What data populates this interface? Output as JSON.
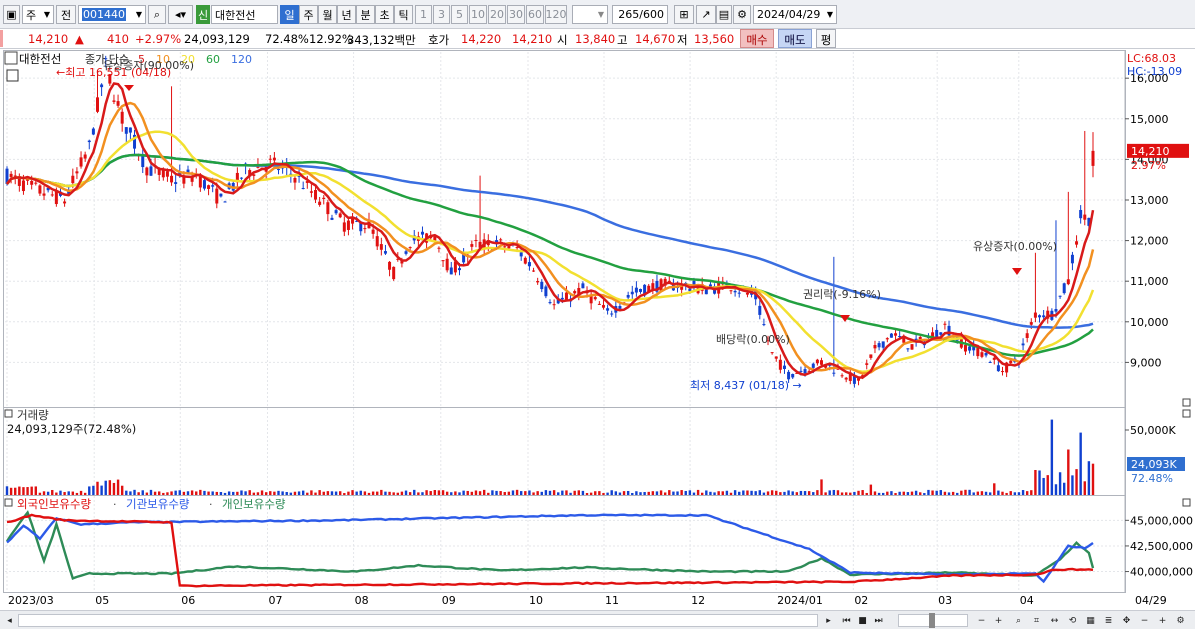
{
  "toolbar": {
    "market_label": "주",
    "prev_label": "전",
    "code_value": "001440",
    "new_badge": "신",
    "stock_name": "대한전선",
    "period_tabs": [
      "일",
      "주",
      "월",
      "년",
      "분",
      "초",
      "틱"
    ],
    "active_period": "일",
    "minute_options": [
      "1",
      "3",
      "5",
      "10",
      "20",
      "30",
      "60",
      "120"
    ],
    "count_display": "265",
    "count_max": "/600",
    "date_value": "2024/04/29"
  },
  "quote": {
    "price": "14,210",
    "change": "410",
    "pct": "+2.97%",
    "volume": "24,093,129",
    "vol_ratio": "72.48%",
    "turnover": "12.92%",
    "amount": "343,132백만",
    "ask_label": "호가",
    "ask": "14,220",
    "bid": "14,210",
    "open_label": "시",
    "open": "13,840",
    "high_label": "고",
    "high": "14,670",
    "low_label": "저",
    "low": "13,560",
    "buy_label": "매수",
    "sell_label": "매도",
    "eval_label": "평"
  },
  "price_panel": {
    "legend_name": "대한전선",
    "legend_ma_prefix": "종가 단순",
    "ma_periods": [
      "5",
      "10",
      "20",
      "60",
      "120"
    ],
    "lc_label": "LC:68.03",
    "hc_label": "HC:-13.09",
    "yaxis": [
      "16,000",
      "15,000",
      "14,000",
      "13,000",
      "12,000",
      "11,000",
      "10,000",
      "9,000"
    ],
    "current_price": "14,210",
    "current_pct": "2.97%",
    "annotations": {
      "high": "최고 16,551 (04/18)",
      "split": "유상증자(90.00%)",
      "dividend": "배당락(0.00%)",
      "rights": "권리락(-9.16%)",
      "rights2": "유상증자(0.00%)",
      "low": "최저 8,437 (01/18)"
    }
  },
  "volume_panel": {
    "title": "거래량",
    "value": "24,093,129주(72.48%)",
    "yaxis": "50,000K",
    "current": "24,093K",
    "current_pct": "72.48%"
  },
  "holdings_panel": {
    "series": [
      "외국인보유수량",
      "기관보유수량",
      "개인보유수량"
    ],
    "yaxis": [
      "45,000,000",
      "42,500,000",
      "40,000,000"
    ]
  },
  "xaxis": [
    "2023/03",
    "05",
    "06",
    "07",
    "08",
    "09",
    "10",
    "11",
    "12",
    "2024/01",
    "02",
    "03",
    "04",
    "04/29"
  ],
  "colors": {
    "up": "#e01010",
    "down": "#1040d0",
    "ma5": "#d81a1a",
    "ma10": "#f29020",
    "ma20": "#f2e030",
    "ma60": "#22a040",
    "ma120": "#3a6ee0"
  }
}
